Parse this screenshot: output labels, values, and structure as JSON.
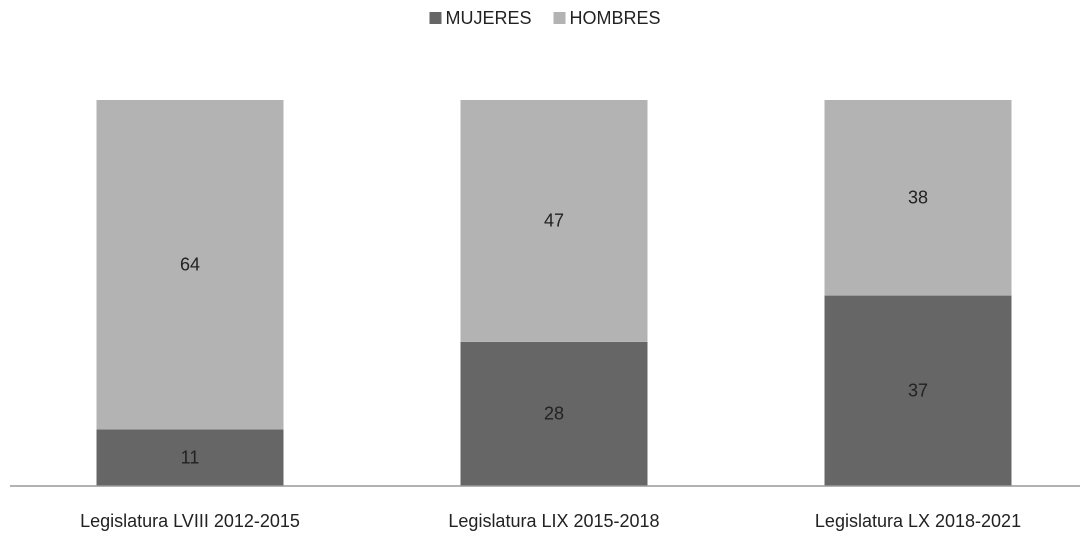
{
  "chart_data": {
    "type": "stacked_bar",
    "categories": [
      "Legislatura LVIII 2012-2015",
      "Legislatura LIX 2015-2018",
      "Legislatura LX 2018-2021"
    ],
    "series": [
      {
        "name": "MUJERES",
        "color": "#666666",
        "values": [
          11,
          28,
          37
        ]
      },
      {
        "name": "HOMBRES",
        "color": "#b3b3b3",
        "values": [
          64,
          47,
          38
        ]
      }
    ],
    "legend": "top"
  }
}
